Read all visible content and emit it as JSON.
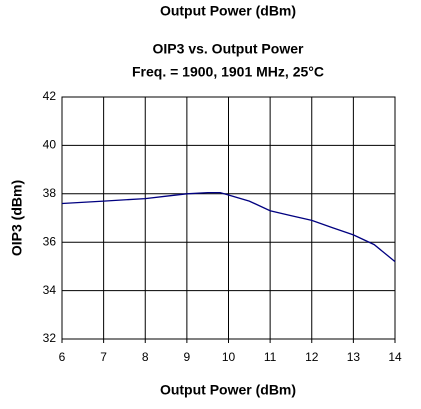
{
  "chart_data": {
    "type": "line",
    "annotations": [
      "Output Power (dBm)"
    ],
    "title": "OIP3 vs. Output Power",
    "subtitle": "Freq. = 1900, 1901 MHz, 25°C",
    "xlabel": "Output Power (dBm)",
    "ylabel": "OIP3 (dBm)",
    "x": [
      6,
      7,
      8,
      8.5,
      9,
      9.5,
      9.8,
      10,
      10.5,
      11,
      11.5,
      12,
      12.5,
      13,
      13.5,
      14
    ],
    "series": [
      {
        "name": "OIP3",
        "color": "#000080",
        "values": [
          37.6,
          37.7,
          37.8,
          37.9,
          38.0,
          38.05,
          38.05,
          37.95,
          37.7,
          37.3,
          37.1,
          36.9,
          36.6,
          36.3,
          35.9,
          35.2
        ]
      }
    ],
    "xlim": [
      6,
      14
    ],
    "xticks": [
      6,
      7,
      8,
      9,
      10,
      11,
      12,
      13,
      14
    ],
    "ylim": [
      32,
      42
    ],
    "yticks": [
      32,
      34,
      36,
      38,
      40,
      42
    ],
    "grid": true
  }
}
